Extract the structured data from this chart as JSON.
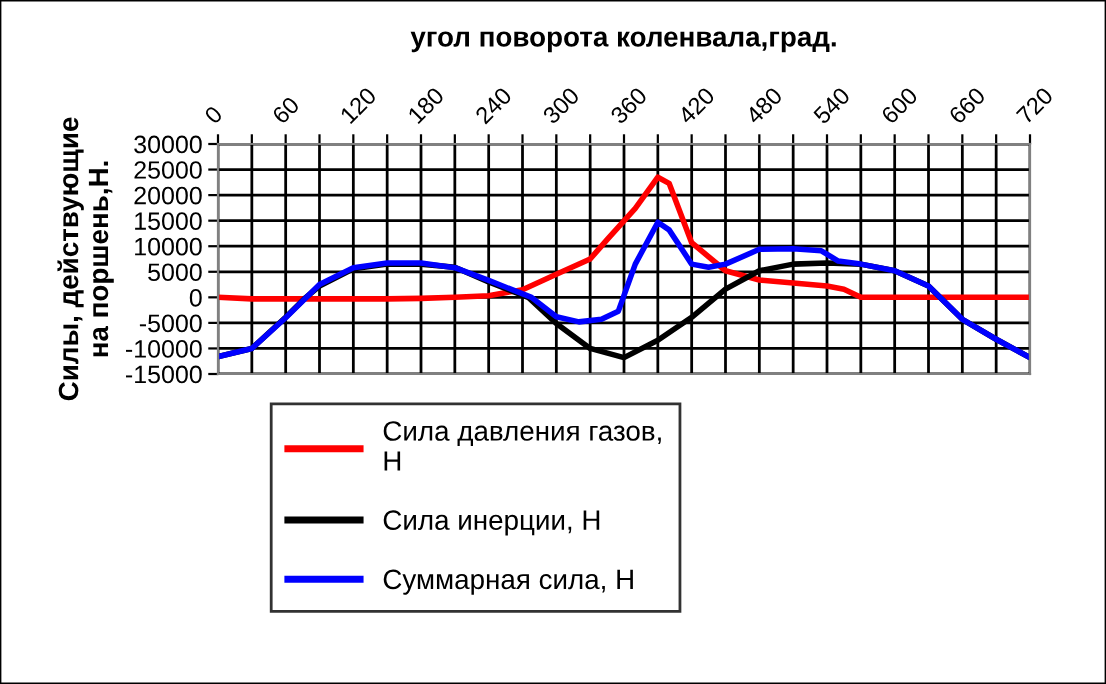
{
  "chart_data": {
    "type": "line",
    "xlabel": "угол поворота коленвала,град.",
    "ylabel": "Силы, действующие\nна поршень,Н.",
    "xlim": [
      0,
      720
    ],
    "xticks": [
      0,
      {
        "value": 30,
        "label": null
      },
      60,
      {
        "value": 90,
        "label": null
      },
      120,
      {
        "value": 150,
        "label": null
      },
      180,
      {
        "value": 210,
        "label": null
      },
      240,
      {
        "value": 270,
        "label": null
      },
      300,
      {
        "value": 330,
        "label": null
      },
      360,
      {
        "value": 390,
        "label": null
      },
      420,
      {
        "value": 450,
        "label": null
      },
      480,
      {
        "value": 510,
        "label": null
      },
      540,
      {
        "value": 570,
        "label": null
      },
      600,
      {
        "value": 630,
        "label": null
      },
      660,
      {
        "value": 690,
        "label": null
      },
      720
    ],
    "ylim": [
      -15000,
      30000
    ],
    "yticks": [
      -15000,
      -10000,
      -5000,
      0,
      5000,
      10000,
      15000,
      20000,
      25000,
      30000
    ],
    "grid": true,
    "legend": "bottom",
    "marker": "none",
    "line_style": "solid",
    "series": [
      {
        "name": "Сила давления газов,\nН",
        "color": "#ff0000",
        "x": [
          0,
          30,
          60,
          90,
          120,
          150,
          180,
          210,
          240,
          270,
          300,
          330,
          345,
          370,
          390,
          400,
          420,
          450,
          480,
          510,
          540,
          555,
          570,
          600,
          630,
          660,
          690,
          720
        ],
        "values": [
          0,
          -300,
          -300,
          -300,
          -300,
          -300,
          -200,
          0,
          300,
          1500,
          4500,
          7500,
          11300,
          17400,
          23500,
          22300,
          10700,
          5200,
          3400,
          2800,
          2200,
          1600,
          0,
          0,
          0,
          0,
          0,
          0
        ]
      },
      {
        "name": "Сила инерции, Н",
        "color": "#000000",
        "x": [
          0,
          30,
          60,
          78,
          90,
          120,
          150,
          180,
          210,
          240,
          275,
          300,
          330,
          360,
          390,
          420,
          450,
          480,
          510,
          540,
          570,
          600,
          630,
          660,
          690,
          720
        ],
        "values": [
          -11600,
          -10000,
          -3900,
          0,
          2200,
          5600,
          6500,
          6500,
          5900,
          3000,
          0,
          -5100,
          -10000,
          -11800,
          -8400,
          -3900,
          1600,
          5200,
          6500,
          6700,
          6500,
          5200,
          2200,
          -4300,
          -8200,
          -11800
        ]
      },
      {
        "name": "Суммарная сила, Н",
        "color": "#0000ff",
        "x": [
          0,
          30,
          60,
          90,
          120,
          150,
          180,
          210,
          240,
          278,
          300,
          320,
          340,
          355,
          370,
          390,
          400,
          420,
          435,
          450,
          480,
          510,
          535,
          550,
          570,
          600,
          630,
          660,
          690,
          720
        ],
        "values": [
          -11600,
          -10000,
          -4000,
          2500,
          5800,
          6700,
          6700,
          5800,
          3300,
          0,
          -3800,
          -4800,
          -4300,
          -2700,
          6500,
          14700,
          13200,
          6500,
          5900,
          6500,
          9400,
          9500,
          9100,
          7100,
          6500,
          5200,
          2200,
          -4300,
          -8200,
          -11800
        ]
      }
    ]
  }
}
